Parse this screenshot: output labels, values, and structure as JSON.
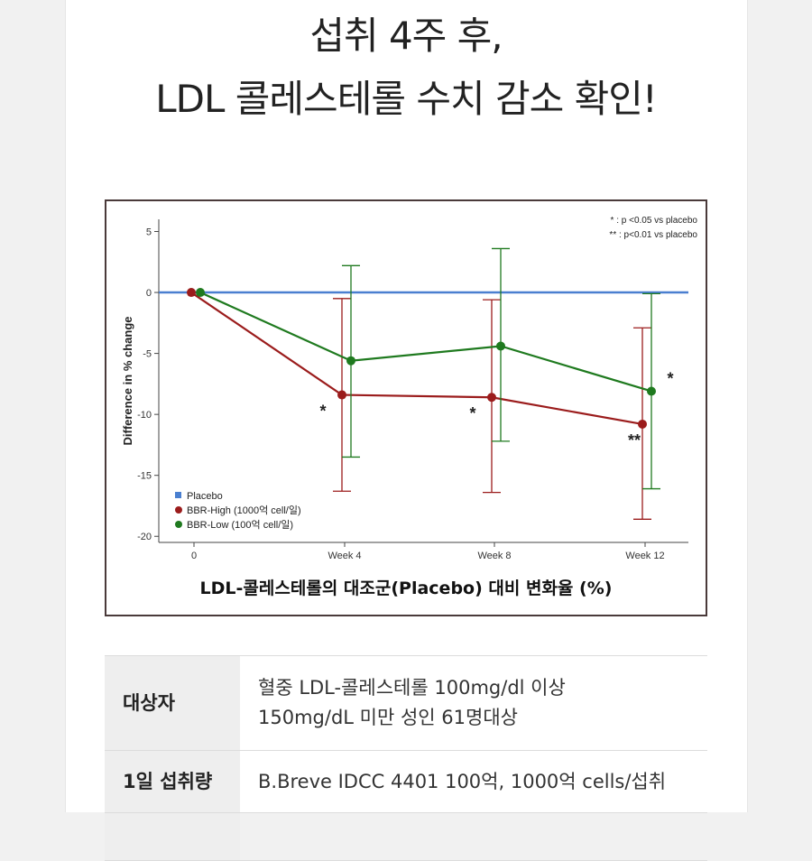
{
  "headline": {
    "line1": "섭취 4주 후,",
    "line2": "LDL 콜레스테롤 수치 감소 확인!"
  },
  "chart_data": {
    "type": "line",
    "title": "",
    "xlabel": "",
    "ylabel": "Difference in % change",
    "x_categories": [
      "0",
      "Week 4",
      "Week 8",
      "Week 12"
    ],
    "y_ticks": [
      5,
      0,
      -5,
      -10,
      -15,
      -20
    ],
    "ylim": [
      -20.5,
      6
    ],
    "grid": false,
    "legend_position": "bottom-left",
    "significance_notes": [
      "* : p <0.05 vs placebo",
      "** : p<0.01 vs placebo"
    ],
    "series": [
      {
        "name": "Placebo",
        "color": "#4a7fd0",
        "marker": "square",
        "values": [
          0,
          0,
          0,
          0
        ]
      },
      {
        "name": "BBR-High (1000억 cell/일)",
        "color": "#9b1c1c",
        "marker": "circle",
        "values": [
          0,
          -8.4,
          -8.6,
          -10.8
        ],
        "error_low": [
          0,
          -16.3,
          -16.4,
          -18.6
        ],
        "error_high": [
          0,
          -0.5,
          -0.6,
          -2.9
        ],
        "significance": [
          "",
          "*",
          "*",
          "**"
        ]
      },
      {
        "name": "BBR-Low (100억 cell/일)",
        "color": "#1f7a1f",
        "marker": "circle",
        "values": [
          0,
          -5.6,
          -4.4,
          -8.1
        ],
        "error_low": [
          0,
          -13.5,
          -12.2,
          -16.1
        ],
        "error_high": [
          0,
          2.2,
          3.6,
          -0.1
        ],
        "significance": [
          "",
          "",
          "",
          "*"
        ]
      }
    ],
    "caption": "LDL-콜레스테롤의 대조군(Placebo) 대비 변화율 (%)"
  },
  "info_table": [
    {
      "label": "대상자",
      "value_lines": [
        "혈중 LDL-콜레스테롤 100mg/dl 이상",
        "150mg/dL 미만 성인 61명대상"
      ]
    },
    {
      "label": "1일 섭취량",
      "value_lines": [
        "B.Breve IDCC 4401 100억, 1000억 cells/섭취"
      ]
    },
    {
      "label": "",
      "value_lines": [
        ""
      ]
    }
  ]
}
